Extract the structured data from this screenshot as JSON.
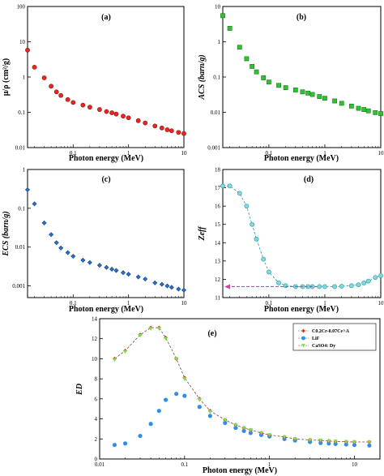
{
  "chart_data": [
    {
      "type": "scatter",
      "panel_label": "(a)",
      "xlabel": "Photon energy (MeV)",
      "ylabel": "μ/ρ (cm²/g)",
      "x_scale": "log",
      "y_scale": "log",
      "xlim": [
        0.015,
        10
      ],
      "ylim": [
        0.01,
        100
      ],
      "x_ticks": [
        {
          "v": 0.1,
          "label": "0.1"
        },
        {
          "v": 1,
          "label": "1"
        },
        {
          "v": 10,
          "label": "10"
        }
      ],
      "y_ticks": [
        {
          "v": 0.01,
          "label": "0.01"
        },
        {
          "v": 0.1,
          "label": "0.1"
        },
        {
          "v": 1,
          "label": "1"
        },
        {
          "v": 10,
          "label": "10"
        },
        {
          "v": 100,
          "label": "100"
        }
      ],
      "marker": "circle",
      "color": "#e8251f",
      "series": [
        {
          "x": [
            0.015,
            0.02,
            0.03,
            0.04,
            0.05,
            0.06,
            0.08,
            0.1,
            0.15,
            0.2,
            0.3,
            0.4,
            0.5,
            0.6,
            0.8,
            1,
            1.5,
            2,
            3,
            4,
            5,
            6,
            8,
            10
          ],
          "y": [
            5.8,
            1.9,
            0.95,
            0.55,
            0.38,
            0.3,
            0.23,
            0.19,
            0.16,
            0.14,
            0.12,
            0.105,
            0.097,
            0.089,
            0.078,
            0.07,
            0.058,
            0.05,
            0.041,
            0.036,
            0.032,
            0.03,
            0.027,
            0.025
          ]
        }
      ]
    },
    {
      "type": "scatter",
      "panel_label": "(b)",
      "xlabel": "Photon energy (MeV)",
      "ylabel": "ACS (barn/g)",
      "x_scale": "log",
      "y_scale": "log",
      "xlim": [
        0.015,
        10
      ],
      "ylim": [
        0.001,
        10
      ],
      "x_ticks": [
        {
          "v": 0.1,
          "label": "0.1"
        },
        {
          "v": 1,
          "label": "1"
        },
        {
          "v": 10,
          "label": "10"
        }
      ],
      "y_ticks": [
        {
          "v": 0.001,
          "label": "0.001"
        },
        {
          "v": 0.01,
          "label": "0.01"
        },
        {
          "v": 0.1,
          "label": "0.1"
        },
        {
          "v": 1,
          "label": "1"
        },
        {
          "v": 10,
          "label": "10"
        }
      ],
      "marker": "square",
      "color": "#2fc42f",
      "series": [
        {
          "x": [
            0.015,
            0.02,
            0.03,
            0.04,
            0.05,
            0.06,
            0.08,
            0.1,
            0.15,
            0.2,
            0.3,
            0.4,
            0.5,
            0.6,
            0.8,
            1,
            1.5,
            2,
            3,
            4,
            5,
            6,
            8,
            10
          ],
          "y": [
            5.5,
            2.4,
            0.7,
            0.33,
            0.2,
            0.14,
            0.095,
            0.072,
            0.058,
            0.05,
            0.043,
            0.038,
            0.035,
            0.032,
            0.028,
            0.025,
            0.021,
            0.018,
            0.015,
            0.013,
            0.012,
            0.011,
            0.0098,
            0.0092
          ]
        }
      ]
    },
    {
      "type": "scatter",
      "panel_label": "(c)",
      "xlabel": "Photon energy (MeV)",
      "ylabel": "ECS (barn/g)",
      "x_scale": "log",
      "y_scale": "log",
      "xlim": [
        0.015,
        10
      ],
      "ylim": [
        0.0005,
        1
      ],
      "x_ticks": [
        {
          "v": 0.1,
          "label": "0.1"
        },
        {
          "v": 1,
          "label": "1"
        },
        {
          "v": 10,
          "label": "10"
        }
      ],
      "y_ticks": [
        {
          "v": 0.001,
          "label": "0.001"
        },
        {
          "v": 0.01,
          "label": "0.01"
        },
        {
          "v": 0.1,
          "label": "0.1"
        },
        {
          "v": 1,
          "label": "1"
        }
      ],
      "marker": "diamond",
      "color": "#2a6fcf",
      "series": [
        {
          "x": [
            0.015,
            0.02,
            0.03,
            0.04,
            0.05,
            0.06,
            0.08,
            0.1,
            0.15,
            0.2,
            0.3,
            0.4,
            0.5,
            0.6,
            0.8,
            1,
            1.5,
            2,
            3,
            4,
            5,
            6,
            8,
            10
          ],
          "y": [
            0.3,
            0.13,
            0.042,
            0.021,
            0.013,
            0.0095,
            0.0072,
            0.0058,
            0.0046,
            0.004,
            0.0034,
            0.003,
            0.0027,
            0.0025,
            0.0022,
            0.002,
            0.0017,
            0.0015,
            0.0012,
            0.0011,
            0.001,
            0.00092,
            0.00083,
            0.00078
          ]
        }
      ]
    },
    {
      "type": "line",
      "panel_label": "(d)",
      "xlabel": "Photon energy (MeV)",
      "ylabel": "Zeff",
      "x_scale": "log",
      "y_scale": "linear",
      "xlim": [
        0.015,
        10
      ],
      "ylim": [
        11,
        18
      ],
      "x_ticks": [
        {
          "v": 0.1,
          "label": "0.1"
        },
        {
          "v": 1,
          "label": "1"
        },
        {
          "v": 10,
          "label": "10"
        }
      ],
      "y_ticks": [
        {
          "v": 11,
          "label": "11"
        },
        {
          "v": 12,
          "label": "12"
        },
        {
          "v": 13,
          "label": "13"
        },
        {
          "v": 14,
          "label": "14"
        },
        {
          "v": 15,
          "label": "15"
        },
        {
          "v": 16,
          "label": "16"
        },
        {
          "v": 17,
          "label": "17"
        },
        {
          "v": 18,
          "label": "18"
        }
      ],
      "marker": "circle",
      "color": "#7fd8dc",
      "line_color": "#2a9aa0",
      "arrow_color": "#d63fa6",
      "arrow_y": 11.6,
      "series": [
        {
          "x": [
            0.015,
            0.02,
            0.03,
            0.04,
            0.05,
            0.06,
            0.08,
            0.1,
            0.15,
            0.2,
            0.3,
            0.4,
            0.5,
            0.6,
            0.8,
            1,
            1.5,
            2,
            3,
            4,
            5,
            6,
            8,
            10
          ],
          "y": [
            17.1,
            17.1,
            16.7,
            16.0,
            15.0,
            14.2,
            13.1,
            12.4,
            11.8,
            11.65,
            11.6,
            11.6,
            11.6,
            11.6,
            11.6,
            11.6,
            11.6,
            11.62,
            11.65,
            11.7,
            11.8,
            11.9,
            12.1,
            12.2
          ]
        }
      ]
    },
    {
      "type": "line",
      "panel_label": "(e)",
      "xlabel": "Photon energy (MeV)",
      "ylabel": "ED",
      "x_scale": "log",
      "y_scale": "linear",
      "xlim": [
        0.01,
        20
      ],
      "ylim": [
        0,
        14
      ],
      "x_ticks": [
        {
          "v": 0.01,
          "label": "0.01"
        },
        {
          "v": 0.1,
          "label": "0.1"
        },
        {
          "v": 1,
          "label": "1"
        },
        {
          "v": 10,
          "label": "10"
        }
      ],
      "y_ticks": [
        {
          "v": 0,
          "label": "0"
        },
        {
          "v": 2,
          "label": "2"
        },
        {
          "v": 4,
          "label": "4"
        },
        {
          "v": 6,
          "label": "6"
        },
        {
          "v": 8,
          "label": "8"
        },
        {
          "v": 10,
          "label": "10"
        },
        {
          "v": 12,
          "label": "12"
        },
        {
          "v": 14,
          "label": "14"
        }
      ],
      "legend_position": "top-right",
      "x": [
        0.015,
        0.02,
        0.03,
        0.04,
        0.05,
        0.06,
        0.08,
        0.1,
        0.15,
        0.2,
        0.3,
        0.4,
        0.5,
        0.6,
        0.8,
        1,
        1.5,
        2,
        3,
        4,
        5,
        6,
        8,
        10,
        15
      ],
      "series": [
        {
          "name": "C0.2Cr-0.07Ce^A",
          "marker": "diamond",
          "color": "#e8332a",
          "line": true,
          "values": [
            10.0,
            10.8,
            12.4,
            13.1,
            13.1,
            12.1,
            10.0,
            8.1,
            6.0,
            4.8,
            3.9,
            3.4,
            3.1,
            2.9,
            2.6,
            2.4,
            2.2,
            2.0,
            1.9,
            1.85,
            1.8,
            1.75,
            1.72,
            1.7,
            1.7
          ]
        },
        {
          "name": "LiF",
          "marker": "circle",
          "color": "#2e8ee8",
          "line": false,
          "values": [
            1.4,
            1.55,
            2.3,
            3.5,
            4.8,
            5.9,
            6.5,
            6.3,
            5.2,
            4.3,
            3.6,
            3.1,
            2.8,
            2.6,
            2.4,
            2.25,
            2.0,
            1.85,
            1.7,
            1.6,
            1.55,
            1.5,
            1.45,
            1.4,
            1.35
          ]
        },
        {
          "name": "CaSO4: Dy",
          "marker": "triangle-down",
          "color": "#7ee04a",
          "line": false,
          "values": [
            9.9,
            10.7,
            12.3,
            13.0,
            13.0,
            12.0,
            10.0,
            8.0,
            5.9,
            4.7,
            3.9,
            3.4,
            3.1,
            2.9,
            2.6,
            2.4,
            2.2,
            2.0,
            1.9,
            1.85,
            1.8,
            1.75,
            1.72,
            1.7,
            1.7
          ]
        }
      ]
    }
  ]
}
